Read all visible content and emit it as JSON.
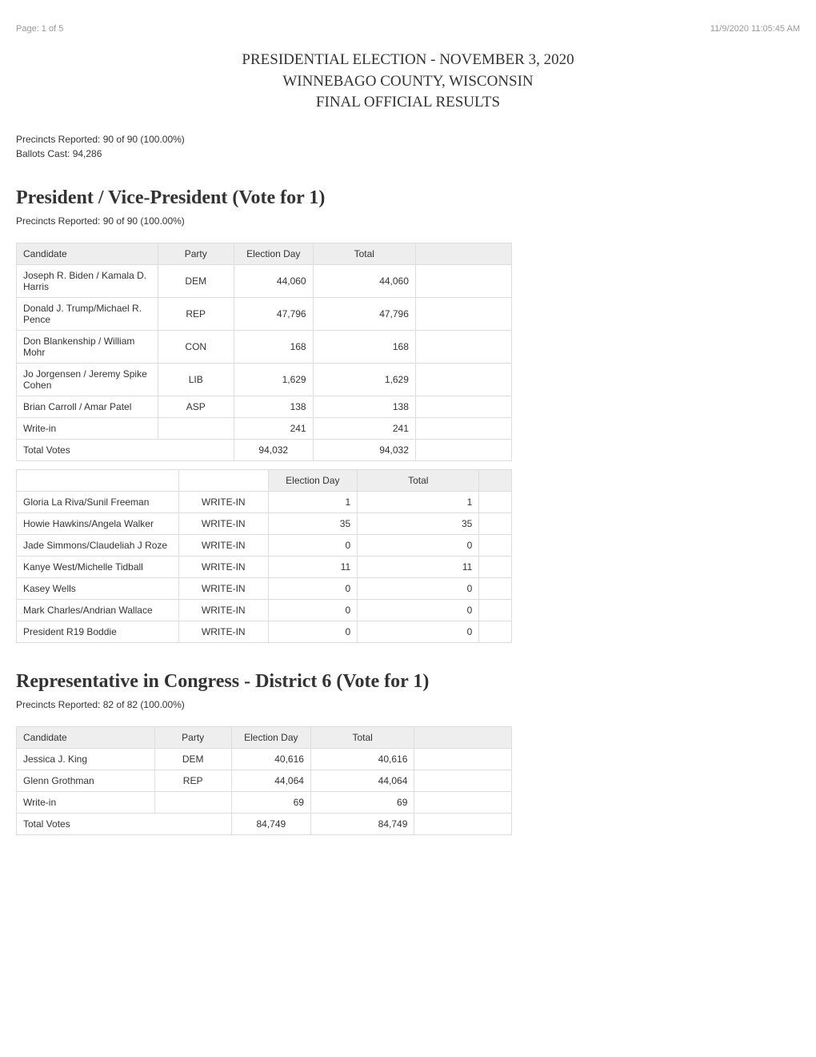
{
  "meta": {
    "page_label": "Page: 1 of 5",
    "timestamp": "11/9/2020 11:05:45 AM"
  },
  "title": {
    "line1": "PRESIDENTIAL ELECTION - NOVEMBER 3, 2020",
    "line2": "WINNEBAGO COUNTY, WISCONSIN",
    "line3": "FINAL OFFICIAL RESULTS"
  },
  "summary": {
    "precincts": "Precincts Reported: 90 of 90 (100.00%)",
    "ballots": "Ballots Cast: 94,286"
  },
  "races": [
    {
      "title": "President / Vice-President (Vote for  1)",
      "precincts": "Precincts Reported: 90 of 90 (100.00%)",
      "headers": [
        "Candidate",
        "Party",
        "Election Day",
        "Total",
        ""
      ],
      "rows": [
        {
          "candidate": "Joseph R. Biden / Kamala D. Harris",
          "party": "DEM",
          "election_day": "44,060",
          "total": "44,060"
        },
        {
          "candidate": "Donald J. Trump/Michael R. Pence",
          "party": "REP",
          "election_day": "47,796",
          "total": "47,796"
        },
        {
          "candidate": "Don Blankenship / William Mohr",
          "party": "CON",
          "election_day": "168",
          "total": "168"
        },
        {
          "candidate": "Jo Jorgensen / Jeremy Spike Cohen",
          "party": "LIB",
          "election_day": "1,629",
          "total": "1,629"
        },
        {
          "candidate": "Brian Carroll / Amar Patel",
          "party": "ASP",
          "election_day": "138",
          "total": "138"
        },
        {
          "candidate": "Write-in",
          "party": "",
          "election_day": "241",
          "total": "241"
        }
      ],
      "total_row": {
        "label": "Total Votes",
        "election_day": "94,032",
        "total": "94,032"
      },
      "writein_headers": [
        "",
        "",
        "Election Day",
        "Total",
        ""
      ],
      "writein_rows": [
        {
          "candidate": "Gloria La Riva/Sunil Freeman",
          "party": "WRITE-IN",
          "election_day": "1",
          "total": "1"
        },
        {
          "candidate": "Howie Hawkins/Angela Walker",
          "party": "WRITE-IN",
          "election_day": "35",
          "total": "35"
        },
        {
          "candidate": "Jade Simmons/Claudeliah J Roze",
          "party": "WRITE-IN",
          "election_day": "0",
          "total": "0"
        },
        {
          "candidate": "Kanye West/Michelle Tidball",
          "party": "WRITE-IN",
          "election_day": "11",
          "total": "11"
        },
        {
          "candidate": "Kasey Wells",
          "party": "WRITE-IN",
          "election_day": "0",
          "total": "0"
        },
        {
          "candidate": "Mark Charles/Andrian Wallace",
          "party": "WRITE-IN",
          "election_day": "0",
          "total": "0"
        },
        {
          "candidate": "President R19 Boddie",
          "party": "WRITE-IN",
          "election_day": "0",
          "total": "0"
        }
      ]
    },
    {
      "title": "Representative in Congress - District 6 (Vote for  1)",
      "precincts": "Precincts Reported: 82 of 82 (100.00%)",
      "headers": [
        "Candidate",
        "Party",
        "Election Day",
        "Total",
        ""
      ],
      "rows": [
        {
          "candidate": "Jessica J. King",
          "party": "DEM",
          "election_day": "40,616",
          "total": "40,616"
        },
        {
          "candidate": "Glenn Grothman",
          "party": "REP",
          "election_day": "44,064",
          "total": "44,064"
        },
        {
          "candidate": "Write-in",
          "party": "",
          "election_day": "69",
          "total": "69"
        }
      ],
      "total_row": {
        "label": "Total Votes",
        "election_day": "84,749",
        "total": "84,749"
      }
    }
  ],
  "style": {
    "bg": "#ffffff",
    "header_bg": "#eeeeee",
    "border_color": "#dddddd",
    "meta_color": "#999999",
    "text_color": "#333333",
    "title_font": "Georgia",
    "body_font": "Segoe UI",
    "title_size_pt": 19,
    "section_title_size_pt": 24,
    "table_font_size_pt": 12
  }
}
